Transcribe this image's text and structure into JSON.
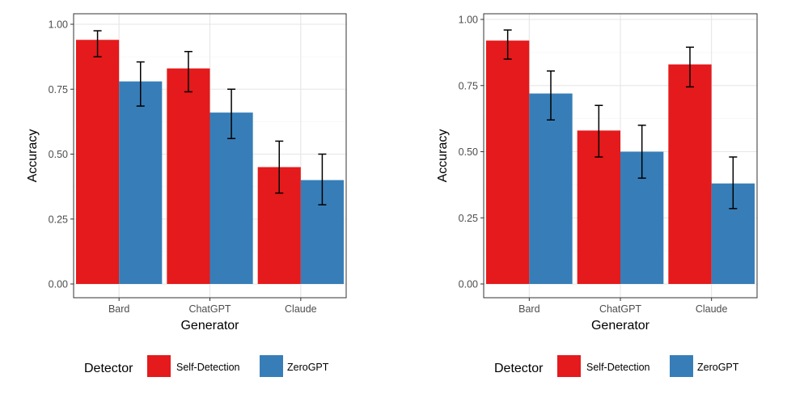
{
  "legend_title": "Detector",
  "colors": {
    "self_detection": "#E41A1C",
    "zerogpt": "#377EB8"
  },
  "chart_data": [
    {
      "type": "bar",
      "categories": [
        "Bard",
        "ChatGPT",
        "Claude"
      ],
      "xlabel": "Generator",
      "ylabel": "Accuracy",
      "ylim": [
        0,
        1
      ],
      "yticks": [
        "0.00",
        "0.25",
        "0.50",
        "0.75",
        "1.00"
      ],
      "grid": true,
      "legend_position": "bottom",
      "series": [
        {
          "name": "Self-Detection",
          "values": [
            0.94,
            0.83,
            0.45
          ],
          "err_low": [
            0.875,
            0.74,
            0.35
          ],
          "err_high": [
            0.975,
            0.895,
            0.55
          ]
        },
        {
          "name": "ZeroGPT",
          "values": [
            0.78,
            0.66,
            0.4
          ],
          "err_low": [
            0.685,
            0.56,
            0.305
          ],
          "err_high": [
            0.855,
            0.75,
            0.5
          ]
        }
      ]
    },
    {
      "type": "bar",
      "categories": [
        "Bard",
        "ChatGPT",
        "Claude"
      ],
      "xlabel": "Generator",
      "ylabel": "Accuracy",
      "ylim": [
        0,
        1
      ],
      "yticks": [
        "0.00",
        "0.25",
        "0.50",
        "0.75",
        "1.00"
      ],
      "grid": true,
      "legend_position": "bottom",
      "series": [
        {
          "name": "Self-Detection",
          "values": [
            0.92,
            0.58,
            0.83
          ],
          "err_low": [
            0.85,
            0.48,
            0.745
          ],
          "err_high": [
            0.96,
            0.675,
            0.895
          ]
        },
        {
          "name": "ZeroGPT",
          "values": [
            0.72,
            0.5,
            0.38
          ],
          "err_low": [
            0.62,
            0.4,
            0.285
          ],
          "err_high": [
            0.805,
            0.6,
            0.48
          ]
        }
      ]
    }
  ]
}
